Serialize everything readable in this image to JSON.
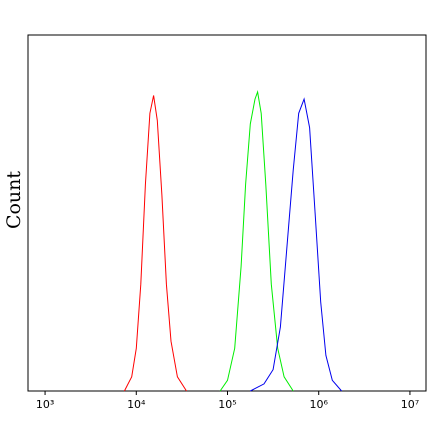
{
  "chart_data": {
    "type": "line",
    "y_label": "Count",
    "log_x": true,
    "xlim": [
      650,
      15000000
    ],
    "ylim": [
      0,
      100
    ],
    "xticks": [
      {
        "value": 1000,
        "label": "10³"
      },
      {
        "value": 10000,
        "label": "10⁴"
      },
      {
        "value": 100000,
        "label": "10⁵"
      },
      {
        "value": 1000000,
        "label": "10⁶"
      },
      {
        "value": 10000000,
        "label": "10⁷"
      }
    ],
    "series": [
      {
        "color": "#ff0000",
        "x": [
          7400,
          8900,
          10000,
          11200,
          12600,
          14100,
          15500,
          17000,
          19100,
          21400,
          24000,
          28200,
          35500
        ],
        "values": [
          0,
          4,
          12,
          30,
          58,
          78,
          83,
          76,
          55,
          30,
          14,
          4,
          0
        ]
      },
      {
        "color": "#00ee00",
        "x": [
          83000,
          100000,
          120000,
          141000,
          158000,
          178000,
          200000,
          214000,
          234000,
          263000,
          302000,
          355000,
          417000,
          525000
        ],
        "values": [
          0,
          3,
          12,
          35,
          58,
          75,
          82,
          84,
          78,
          58,
          30,
          12,
          4,
          0
        ]
      },
      {
        "color": "#0000ee",
        "x": [
          178000,
          251000,
          316000,
          380000,
          447000,
          525000,
          603000,
          692000,
          794000,
          912000,
          1050000,
          1200000,
          1410000,
          1780000
        ],
        "values": [
          0,
          2,
          6,
          18,
          40,
          62,
          78,
          82,
          74,
          50,
          25,
          10,
          3,
          0
        ]
      }
    ]
  }
}
